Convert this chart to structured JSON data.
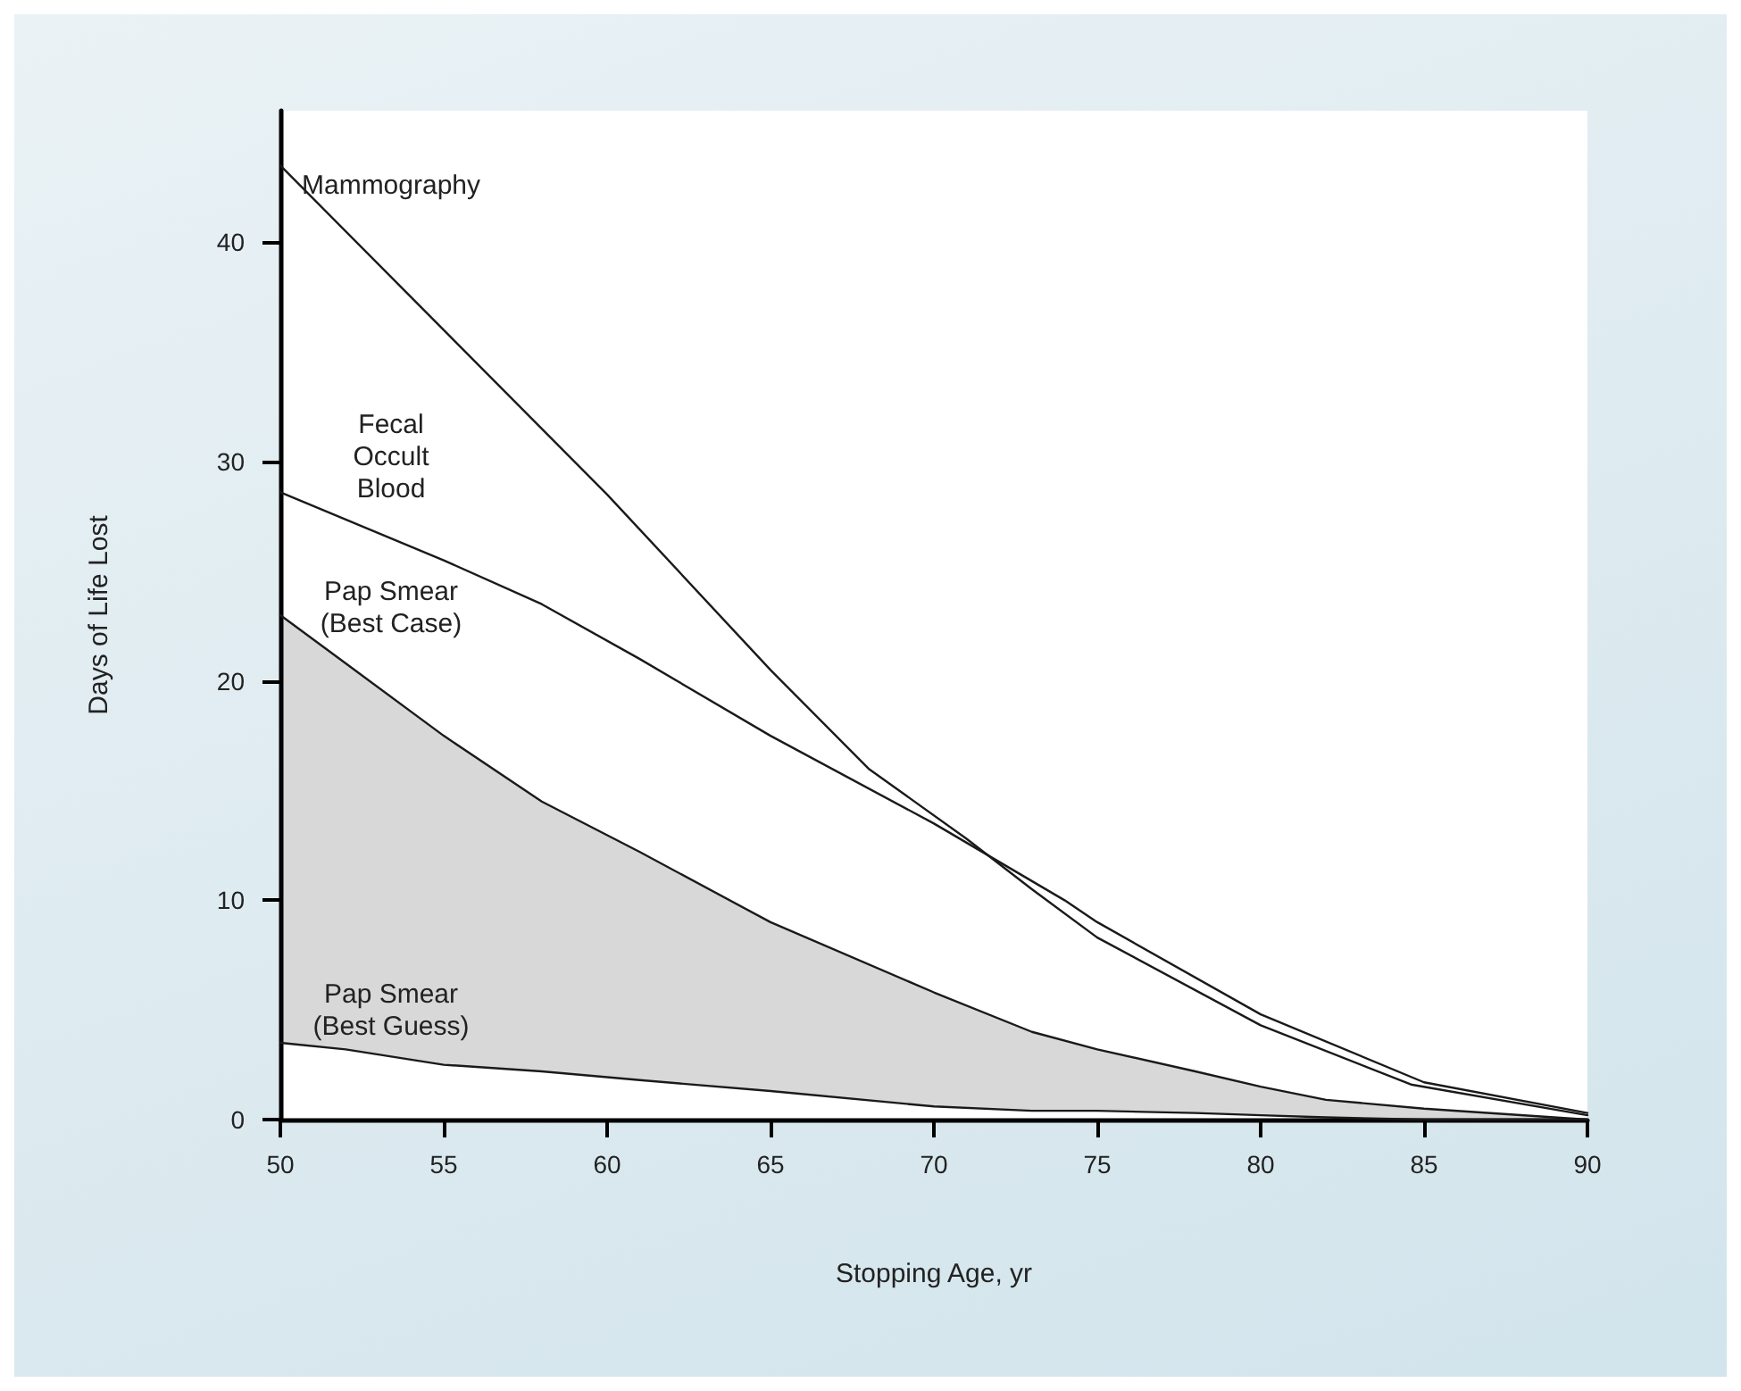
{
  "chart_data": {
    "type": "line",
    "xlabel": "Stopping Age, yr",
    "ylabel": "Days of Life Lost",
    "xlim": [
      50,
      90
    ],
    "xticks": [
      50,
      55,
      60,
      65,
      70,
      75,
      80,
      85,
      90
    ],
    "ylim": [
      0,
      46
    ],
    "yticks": [
      0,
      10,
      20,
      30,
      40
    ],
    "grid": false,
    "legend": false,
    "marker": "none",
    "line_style": "solid",
    "series": [
      {
        "name": "Mammography",
        "color": "#1a1a1a",
        "x": [
          50,
          55,
          60,
          65,
          68,
          71,
          73,
          75,
          80,
          84.6,
          90
        ],
        "values": [
          43.5,
          36,
          28.5,
          20.5,
          16,
          12.8,
          10.5,
          8.3,
          4.3,
          1.6,
          0.2
        ]
      },
      {
        "name": "Fecal\nOccult\nBlood",
        "color": "#1a1a1a",
        "x": [
          50,
          55,
          58,
          61,
          65,
          70,
          74,
          75,
          80,
          85,
          90
        ],
        "values": [
          28.6,
          25.5,
          23.5,
          21,
          17.5,
          13.5,
          10,
          9,
          4.8,
          1.7,
          0.3
        ]
      },
      {
        "name": "Pap Smear\n(Best Case)",
        "color": "#1a1a1a",
        "x": [
          50,
          52,
          55,
          58,
          61,
          65,
          70,
          73,
          75,
          78,
          80,
          82,
          85,
          90
        ],
        "values": [
          23,
          20.8,
          17.5,
          14.5,
          12.2,
          9,
          5.8,
          4,
          3.2,
          2.2,
          1.5,
          0.9,
          0.5,
          0
        ]
      },
      {
        "name": "Pap Smear\n(Best Guess)",
        "color": "#1a1a1a",
        "x": [
          50,
          52,
          55,
          58,
          61,
          65,
          70,
          73,
          75,
          78,
          80,
          82,
          85,
          90
        ],
        "values": [
          3.5,
          3.2,
          2.5,
          2.2,
          1.8,
          1.3,
          0.6,
          0.4,
          0.4,
          0.3,
          0.2,
          0.1,
          0,
          0
        ],
        "lower": [
          3.5,
          3.2,
          2.5,
          2.2,
          1.8,
          1.3,
          0.6,
          0.4,
          0.4,
          0.3,
          0.2,
          0.1,
          0,
          0
        ],
        "upper": [
          23,
          20.8,
          17.5,
          14.5,
          12.2,
          9,
          5.8,
          4,
          3.2,
          2.2,
          1.5,
          0.9,
          0.5,
          0
        ]
      }
    ]
  }
}
